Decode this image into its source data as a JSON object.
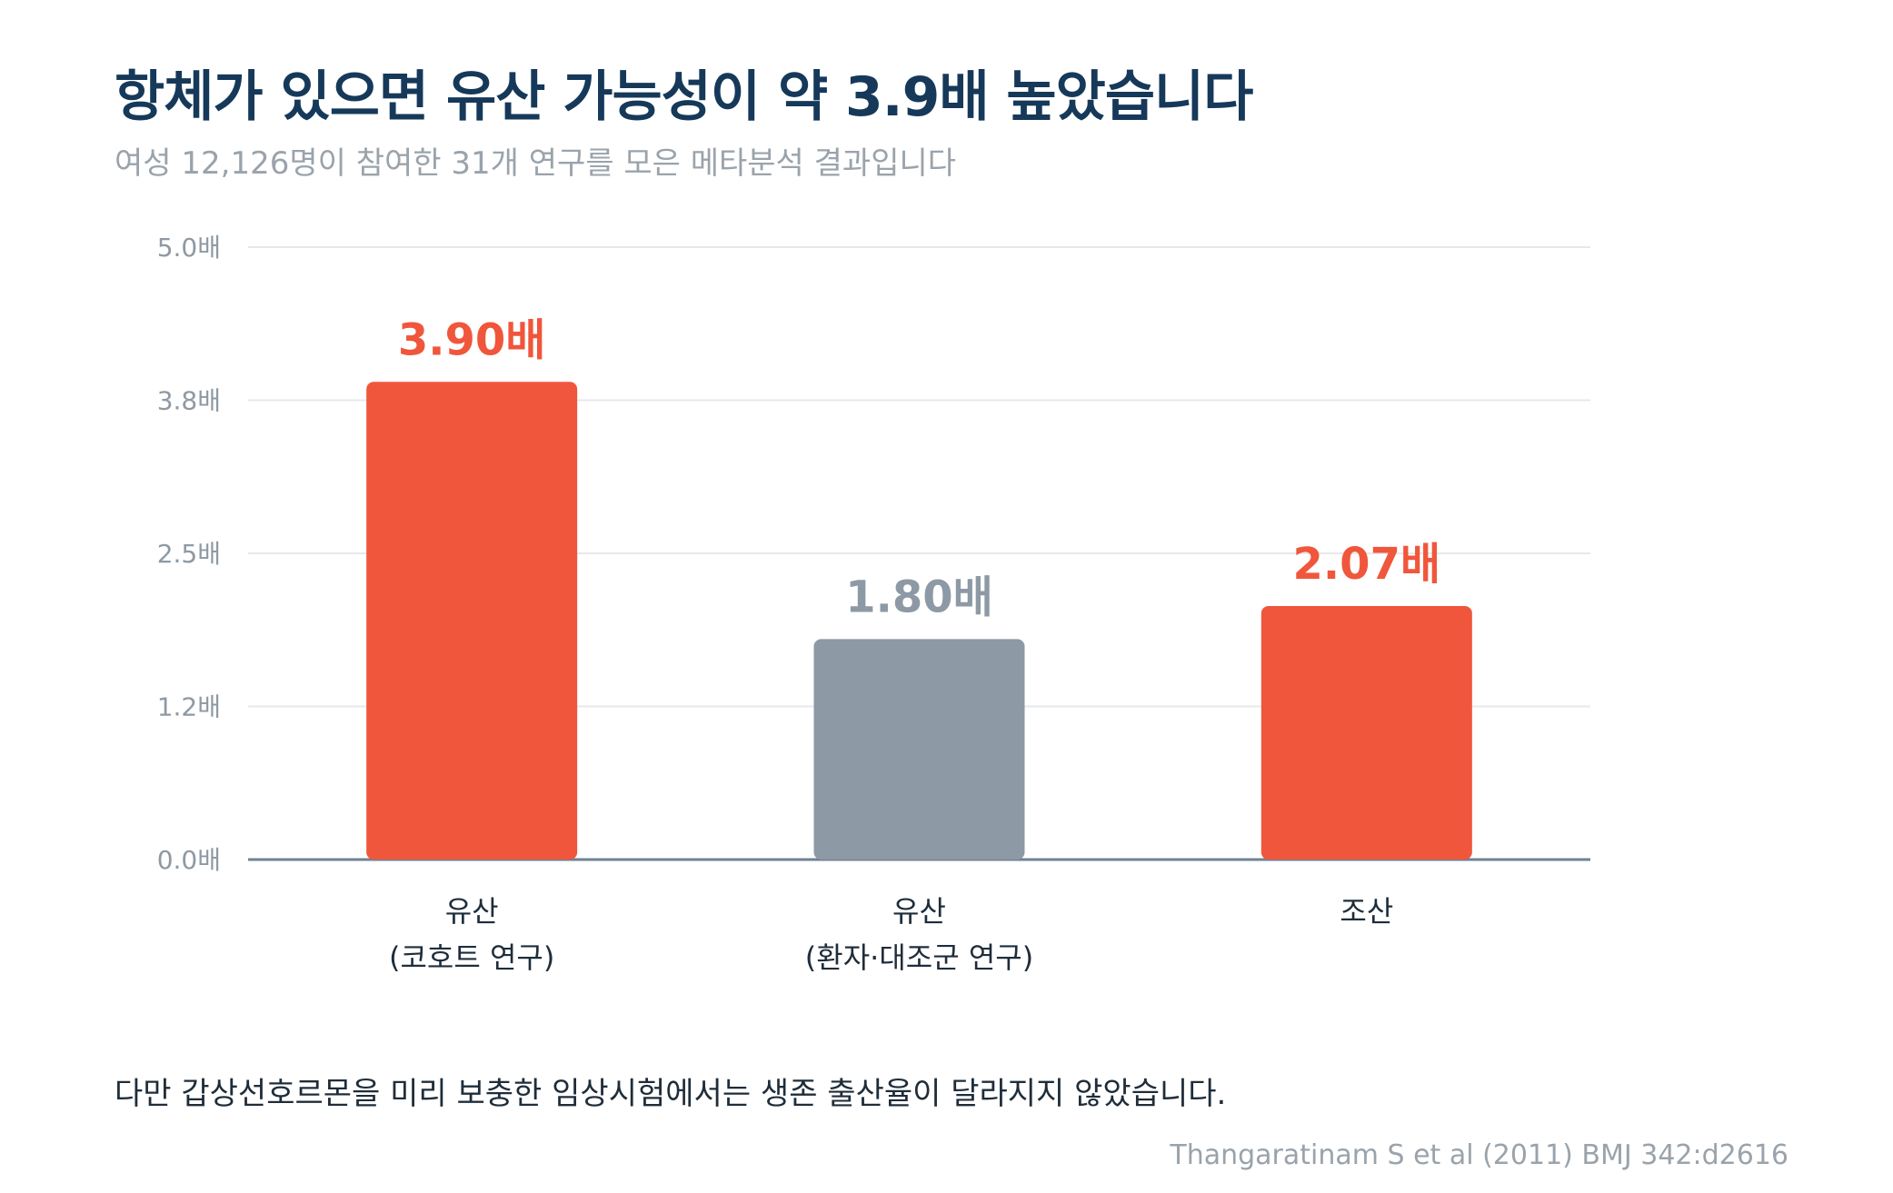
{
  "title": "항체가 있으면 유산 가능성이 약 3.9배 높았습니다",
  "subtitle": "여성 12,126명이 참여한 31개 연구를 모은 메타분석 결과입니다",
  "note": "다만 갑상선호르몬을 미리 보충한 임상시험에서는 생존 출산율이 달라지지 않았습니다.",
  "source": "Thangaratinam S et al (2011) BMJ 342:d2616",
  "colors": {
    "highlight": "#f0563b",
    "neutral": "#8d99a4",
    "title": "#16395a",
    "grid": "#e6e9ec",
    "baseline": "#6f8294"
  },
  "chart_data": {
    "type": "bar",
    "y_ticks": [
      {
        "value": 0,
        "label": "0.0배"
      },
      {
        "value": 1.25,
        "label": "1.2배"
      },
      {
        "value": 2.5,
        "label": "2.5배"
      },
      {
        "value": 3.75,
        "label": "3.8배"
      },
      {
        "value": 5,
        "label": "5.0배"
      }
    ],
    "ylim": [
      0,
      5
    ],
    "grid": true,
    "bars": [
      {
        "category_lines": [
          "유산",
          "(코호트 연구)"
        ],
        "value": 3.9,
        "value_label": "3.90배",
        "color": "#f0563b"
      },
      {
        "category_lines": [
          "유산",
          "(환자·대조군 연구)"
        ],
        "value": 1.8,
        "value_label": "1.80배",
        "color": "#8d99a4"
      },
      {
        "category_lines": [
          "조산"
        ],
        "value": 2.07,
        "value_label": "2.07배",
        "color": "#f0563b"
      }
    ]
  }
}
